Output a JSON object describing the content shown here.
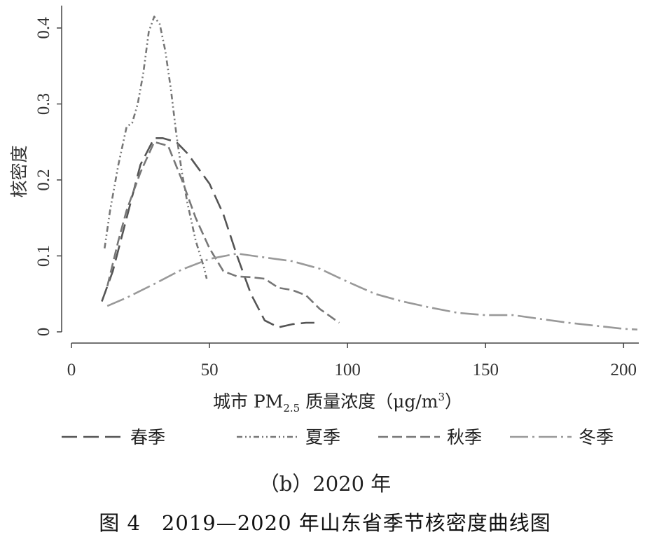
{
  "chart_data": {
    "type": "line",
    "xlabel": "城市 PM2.5 质量浓度（μg/m3）",
    "xlabel_parts": {
      "pre": "城市 PM",
      "sub": "2.5",
      "mid": " 质量浓度（μg/m",
      "sup": "3",
      "post": "）"
    },
    "ylabel": "核密度",
    "xlim": [
      0,
      205
    ],
    "ylim": [
      0,
      0.43
    ],
    "xticks": [
      0,
      50,
      100,
      150,
      200
    ],
    "yticks": [
      0,
      0.1,
      0.2,
      0.3,
      0.4
    ],
    "xtick_labels": [
      "0",
      "50",
      "100",
      "150",
      "200"
    ],
    "ytick_labels": [
      "0",
      "0.1",
      "0.2",
      "0.3",
      "0.4"
    ],
    "grid": false,
    "legend_position": "bottom",
    "series": [
      {
        "name": "春季",
        "color": "#555555",
        "dash": "22,9",
        "x": [
          11,
          15,
          20,
          25,
          30,
          33,
          38,
          42,
          46,
          50,
          55,
          60,
          65,
          70,
          75,
          80,
          85,
          88
        ],
        "y": [
          0.04,
          0.08,
          0.15,
          0.22,
          0.255,
          0.255,
          0.25,
          0.235,
          0.215,
          0.195,
          0.155,
          0.1,
          0.05,
          0.015,
          0.006,
          0.01,
          0.012,
          0.012
        ]
      },
      {
        "name": "夏季",
        "color": "#777777",
        "dash": "8,4,2,4,2,4",
        "x": [
          12,
          14,
          17,
          20,
          22,
          24,
          26,
          28,
          30,
          32,
          34,
          36,
          38,
          40,
          42,
          45,
          48,
          49
        ],
        "y": [
          0.11,
          0.16,
          0.22,
          0.27,
          0.275,
          0.3,
          0.34,
          0.395,
          0.415,
          0.405,
          0.37,
          0.32,
          0.26,
          0.21,
          0.17,
          0.12,
          0.085,
          0.07
        ]
      },
      {
        "name": "秋季",
        "color": "#777777",
        "dash": "14,6",
        "x": [
          13,
          17,
          20,
          25,
          30,
          35,
          40,
          45,
          50,
          55,
          60,
          65,
          70,
          75,
          80,
          85,
          90,
          97
        ],
        "y": [
          0.06,
          0.12,
          0.16,
          0.21,
          0.25,
          0.245,
          0.2,
          0.15,
          0.11,
          0.08,
          0.073,
          0.072,
          0.07,
          0.058,
          0.055,
          0.048,
          0.03,
          0.012
        ]
      },
      {
        "name": "冬季",
        "color": "#999999",
        "dash": "26,6,3,6",
        "x": [
          13,
          20,
          30,
          40,
          50,
          60,
          70,
          80,
          90,
          100,
          110,
          120,
          130,
          140,
          150,
          160,
          170,
          180,
          190,
          200,
          205
        ],
        "y": [
          0.034,
          0.045,
          0.063,
          0.082,
          0.096,
          0.103,
          0.098,
          0.093,
          0.083,
          0.066,
          0.05,
          0.04,
          0.032,
          0.025,
          0.022,
          0.022,
          0.017,
          0.012,
          0.008,
          0.004,
          0.003
        ]
      }
    ]
  },
  "sub_caption": "（b）2020 年",
  "figure_caption": "图 4　2019—2020 年山东省季节核密度曲线图"
}
